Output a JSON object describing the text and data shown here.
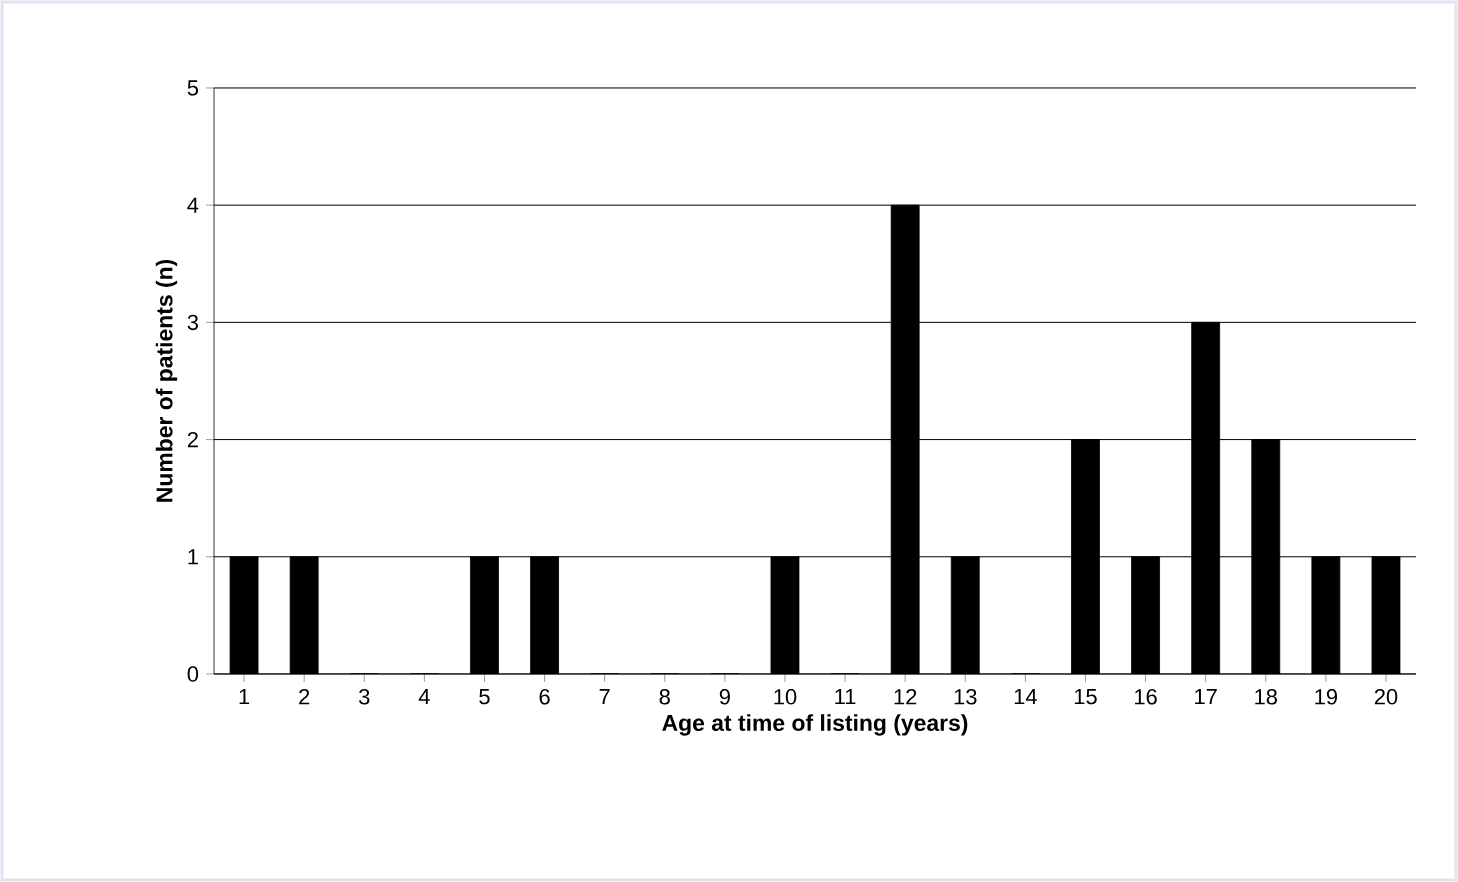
{
  "chart_data": {
    "type": "bar",
    "xlabel": "Age at time of listing (years)",
    "ylabel": "Number of patients (n)",
    "categories": [
      "1",
      "2",
      "3",
      "4",
      "5",
      "6",
      "7",
      "8",
      "9",
      "10",
      "11",
      "12",
      "13",
      "14",
      "15",
      "16",
      "17",
      "18",
      "19",
      "20"
    ],
    "values": [
      1,
      1,
      0,
      0,
      1,
      1,
      0,
      0,
      0,
      1,
      0,
      4,
      1,
      0,
      2,
      1,
      3,
      2,
      1,
      1
    ],
    "color": "#000000",
    "ylim": [
      0,
      5
    ],
    "yticks": [
      0,
      1,
      2,
      3,
      4,
      5
    ],
    "grid": "y"
  }
}
